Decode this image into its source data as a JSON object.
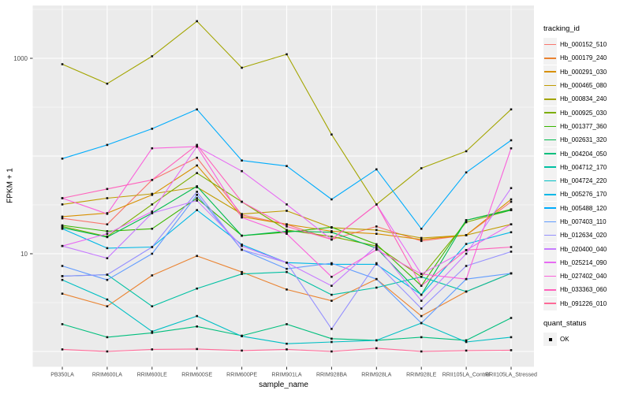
{
  "figure": {
    "background": "#FFFFFF",
    "panel_background": "#EBEBEB",
    "grid_color": "#FFFFFF",
    "tick_label_color": "#4D4D4D",
    "axis_title_color": "#000000",
    "marker_color": "#111111"
  },
  "legend": {
    "tracking_title": "tracking_id",
    "quant_title": "quant_status",
    "quant_items": [
      {
        "label": "OK",
        "marker": "black-square"
      }
    ]
  },
  "chart_data": {
    "type": "line",
    "title": "",
    "xlabel": "sample_name",
    "ylabel": "FPKM + 1",
    "y_scale": "log10",
    "ylim": [
      1,
      3200
    ],
    "grid": "on",
    "legend_position": "right",
    "y_tick_labels": [
      {
        "value": 1000,
        "label": "1000"
      },
      {
        "value": 10,
        "label": "10"
      }
    ],
    "y_major_gridlines": [
      1,
      10,
      100,
      1000
    ],
    "y_minor_gridlines": [
      3.162,
      31.62,
      316.2,
      3162
    ],
    "point_marker": "small black square (quant_status OK)",
    "categories": [
      "PB350LA",
      "RRIM600LA",
      "RRIM600LE",
      "RRIM600SE",
      "RRIM600PE",
      "RRIM901LA",
      "RRIM928BA",
      "RRIM928LA",
      "RRIM928LE",
      "RRII105LA_Control",
      "RRII105LA_Stressed"
    ],
    "series": [
      {
        "name": "Hb_000152_510",
        "color": "#F8766D",
        "values": [
          23,
          20,
          57,
          96,
          25,
          20,
          14,
          19,
          13.5,
          15.5,
          34
        ]
      },
      {
        "name": "Hb_000179_240",
        "color": "#EA8331",
        "values": [
          3.9,
          2.9,
          6,
          9.5,
          6.5,
          4.3,
          3.3,
          5.5,
          2.3,
          4.1,
          6.3
        ]
      },
      {
        "name": "Hb_000291_030",
        "color": "#D89000",
        "values": [
          24,
          26,
          40,
          80,
          24,
          20,
          17,
          16,
          14,
          15.5,
          36
        ]
      },
      {
        "name": "Hb_000465_080",
        "color": "#C09B00",
        "values": [
          32,
          37,
          41,
          48,
          25.5,
          27.5,
          18.5,
          17.5,
          14.5,
          15.5,
          20
        ]
      },
      {
        "name": "Hb_000834_240",
        "color": "#A3A500",
        "values": [
          870,
          550,
          1050,
          2400,
          800,
          1100,
          166,
          32,
          75,
          112,
          300
        ]
      },
      {
        "name": "Hb_000925_030",
        "color": "#7CAE00",
        "values": [
          19,
          15,
          32,
          67,
          34,
          17.5,
          15,
          12,
          5.8,
          21,
          28
        ]
      },
      {
        "name": "Hb_001377_360",
        "color": "#39B600",
        "values": [
          19.5,
          17,
          18,
          37,
          15.3,
          16.6,
          18.7,
          12.5,
          4.7,
          22,
          28.5
        ]
      },
      {
        "name": "Hb_002631_320",
        "color": "#00BB4E",
        "values": [
          18.5,
          14.8,
          26,
          49,
          15.3,
          17,
          16.6,
          11.4,
          3.8,
          22,
          28
        ]
      },
      {
        "name": "Hb_004204_050",
        "color": "#00BF7D",
        "values": [
          1.9,
          1.4,
          1.55,
          1.8,
          1.45,
          1.9,
          1.35,
          1.3,
          1.4,
          1.3,
          2.2
        ]
      },
      {
        "name": "Hb_004712_170",
        "color": "#00C1A3",
        "values": [
          5.9,
          6.1,
          2.9,
          4.4,
          6.2,
          6.5,
          3.8,
          4.5,
          5.8,
          4.1,
          6.3
        ]
      },
      {
        "name": "Hb_004724_220",
        "color": "#00BFC4",
        "values": [
          5.4,
          3.4,
          1.6,
          2.3,
          1.43,
          1.2,
          1.25,
          1.3,
          1.95,
          1.25,
          1.4
        ]
      },
      {
        "name": "Hb_005276_170",
        "color": "#00B8E7",
        "values": [
          18,
          11.4,
          11.7,
          28,
          12.4,
          8.1,
          7.8,
          7.8,
          3.8,
          12.6,
          16.6
        ]
      },
      {
        "name": "Hb_005488_120",
        "color": "#00ACFC",
        "values": [
          94,
          130,
          190,
          300,
          90,
          79,
          36,
          73,
          18,
          68,
          145
        ]
      },
      {
        "name": "Hb_007403_110",
        "color": "#619CFF",
        "values": [
          7.5,
          5.4,
          10,
          40,
          11,
          7,
          8,
          5.5,
          1.95,
          5.5,
          6.3
        ]
      },
      {
        "name": "Hb_012634_020",
        "color": "#9590FF",
        "values": [
          5.9,
          6.1,
          11.7,
          43,
          11,
          8.1,
          1.7,
          8,
          2.75,
          7.5,
          10.5
        ]
      },
      {
        "name": "Hb_020400_040",
        "color": "#C77CFF",
        "values": [
          12,
          9,
          26,
          35,
          12,
          8.1,
          4.7,
          12,
          3.3,
          10,
          47
        ]
      },
      {
        "name": "Hb_025214_090",
        "color": "#E76BF3",
        "values": [
          12,
          16,
          27,
          125,
          70,
          32,
          14,
          32,
          6.2,
          10.9,
          20
        ]
      },
      {
        "name": "Hb_027402_040",
        "color": "#FA62DB",
        "values": [
          37,
          25.6,
          120,
          125,
          23.5,
          16,
          5.8,
          11,
          6.2,
          5.5,
          120
        ]
      },
      {
        "name": "Hb_033363_060",
        "color": "#FF62BC",
        "values": [
          37,
          46,
          57,
          130,
          34,
          19,
          14,
          32,
          4.7,
          10.9,
          11.7
        ]
      },
      {
        "name": "Hb_091226_010",
        "color": "#FF6A98",
        "values": [
          1.05,
          1,
          1.05,
          1.06,
          1.02,
          1.05,
          1,
          1.08,
          1,
          1.02,
          1.03
        ]
      }
    ]
  }
}
